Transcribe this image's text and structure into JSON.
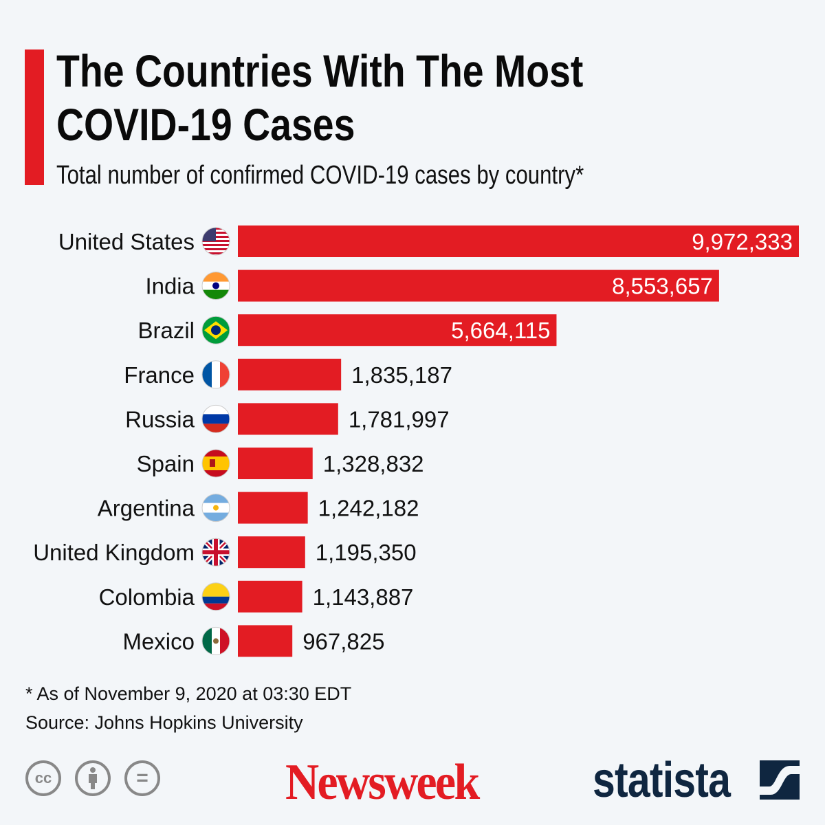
{
  "chart_data": {
    "type": "bar",
    "orientation": "horizontal",
    "title": "The Countries With The Most COVID-19 Cases",
    "subtitle": "Total number of confirmed COVID-19 cases by country*",
    "categories": [
      "United States",
      "India",
      "Brazil",
      "France",
      "Russia",
      "Spain",
      "Argentina",
      "United Kingdom",
      "Colombia",
      "Mexico"
    ],
    "values": [
      9972333,
      8553657,
      5664115,
      1835187,
      1781997,
      1328832,
      1242182,
      1195350,
      1143887,
      967825
    ],
    "value_labels": [
      "9,972,333",
      "8,553,657",
      "5,664,115",
      "1,835,187",
      "1,781,997",
      "1,328,832",
      "1,242,182",
      "1,195,350",
      "1,143,887",
      "967,825"
    ],
    "flags": [
      "us-flag-icon",
      "india-flag-icon",
      "brazil-flag-icon",
      "france-flag-icon",
      "russia-flag-icon",
      "spain-flag-icon",
      "argentina-flag-icon",
      "uk-flag-icon",
      "colombia-flag-icon",
      "mexico-flag-icon"
    ],
    "bar_color": "#e31c23",
    "grid": false,
    "legend": "none"
  },
  "footer": {
    "note": "* As of November 9, 2020 at 03:30 EDT",
    "source": "Source: Johns Hopkins University",
    "cc_label": "cc",
    "equals_label": "="
  },
  "logos": {
    "newsweek": "Newsweek",
    "statista": "statista"
  }
}
